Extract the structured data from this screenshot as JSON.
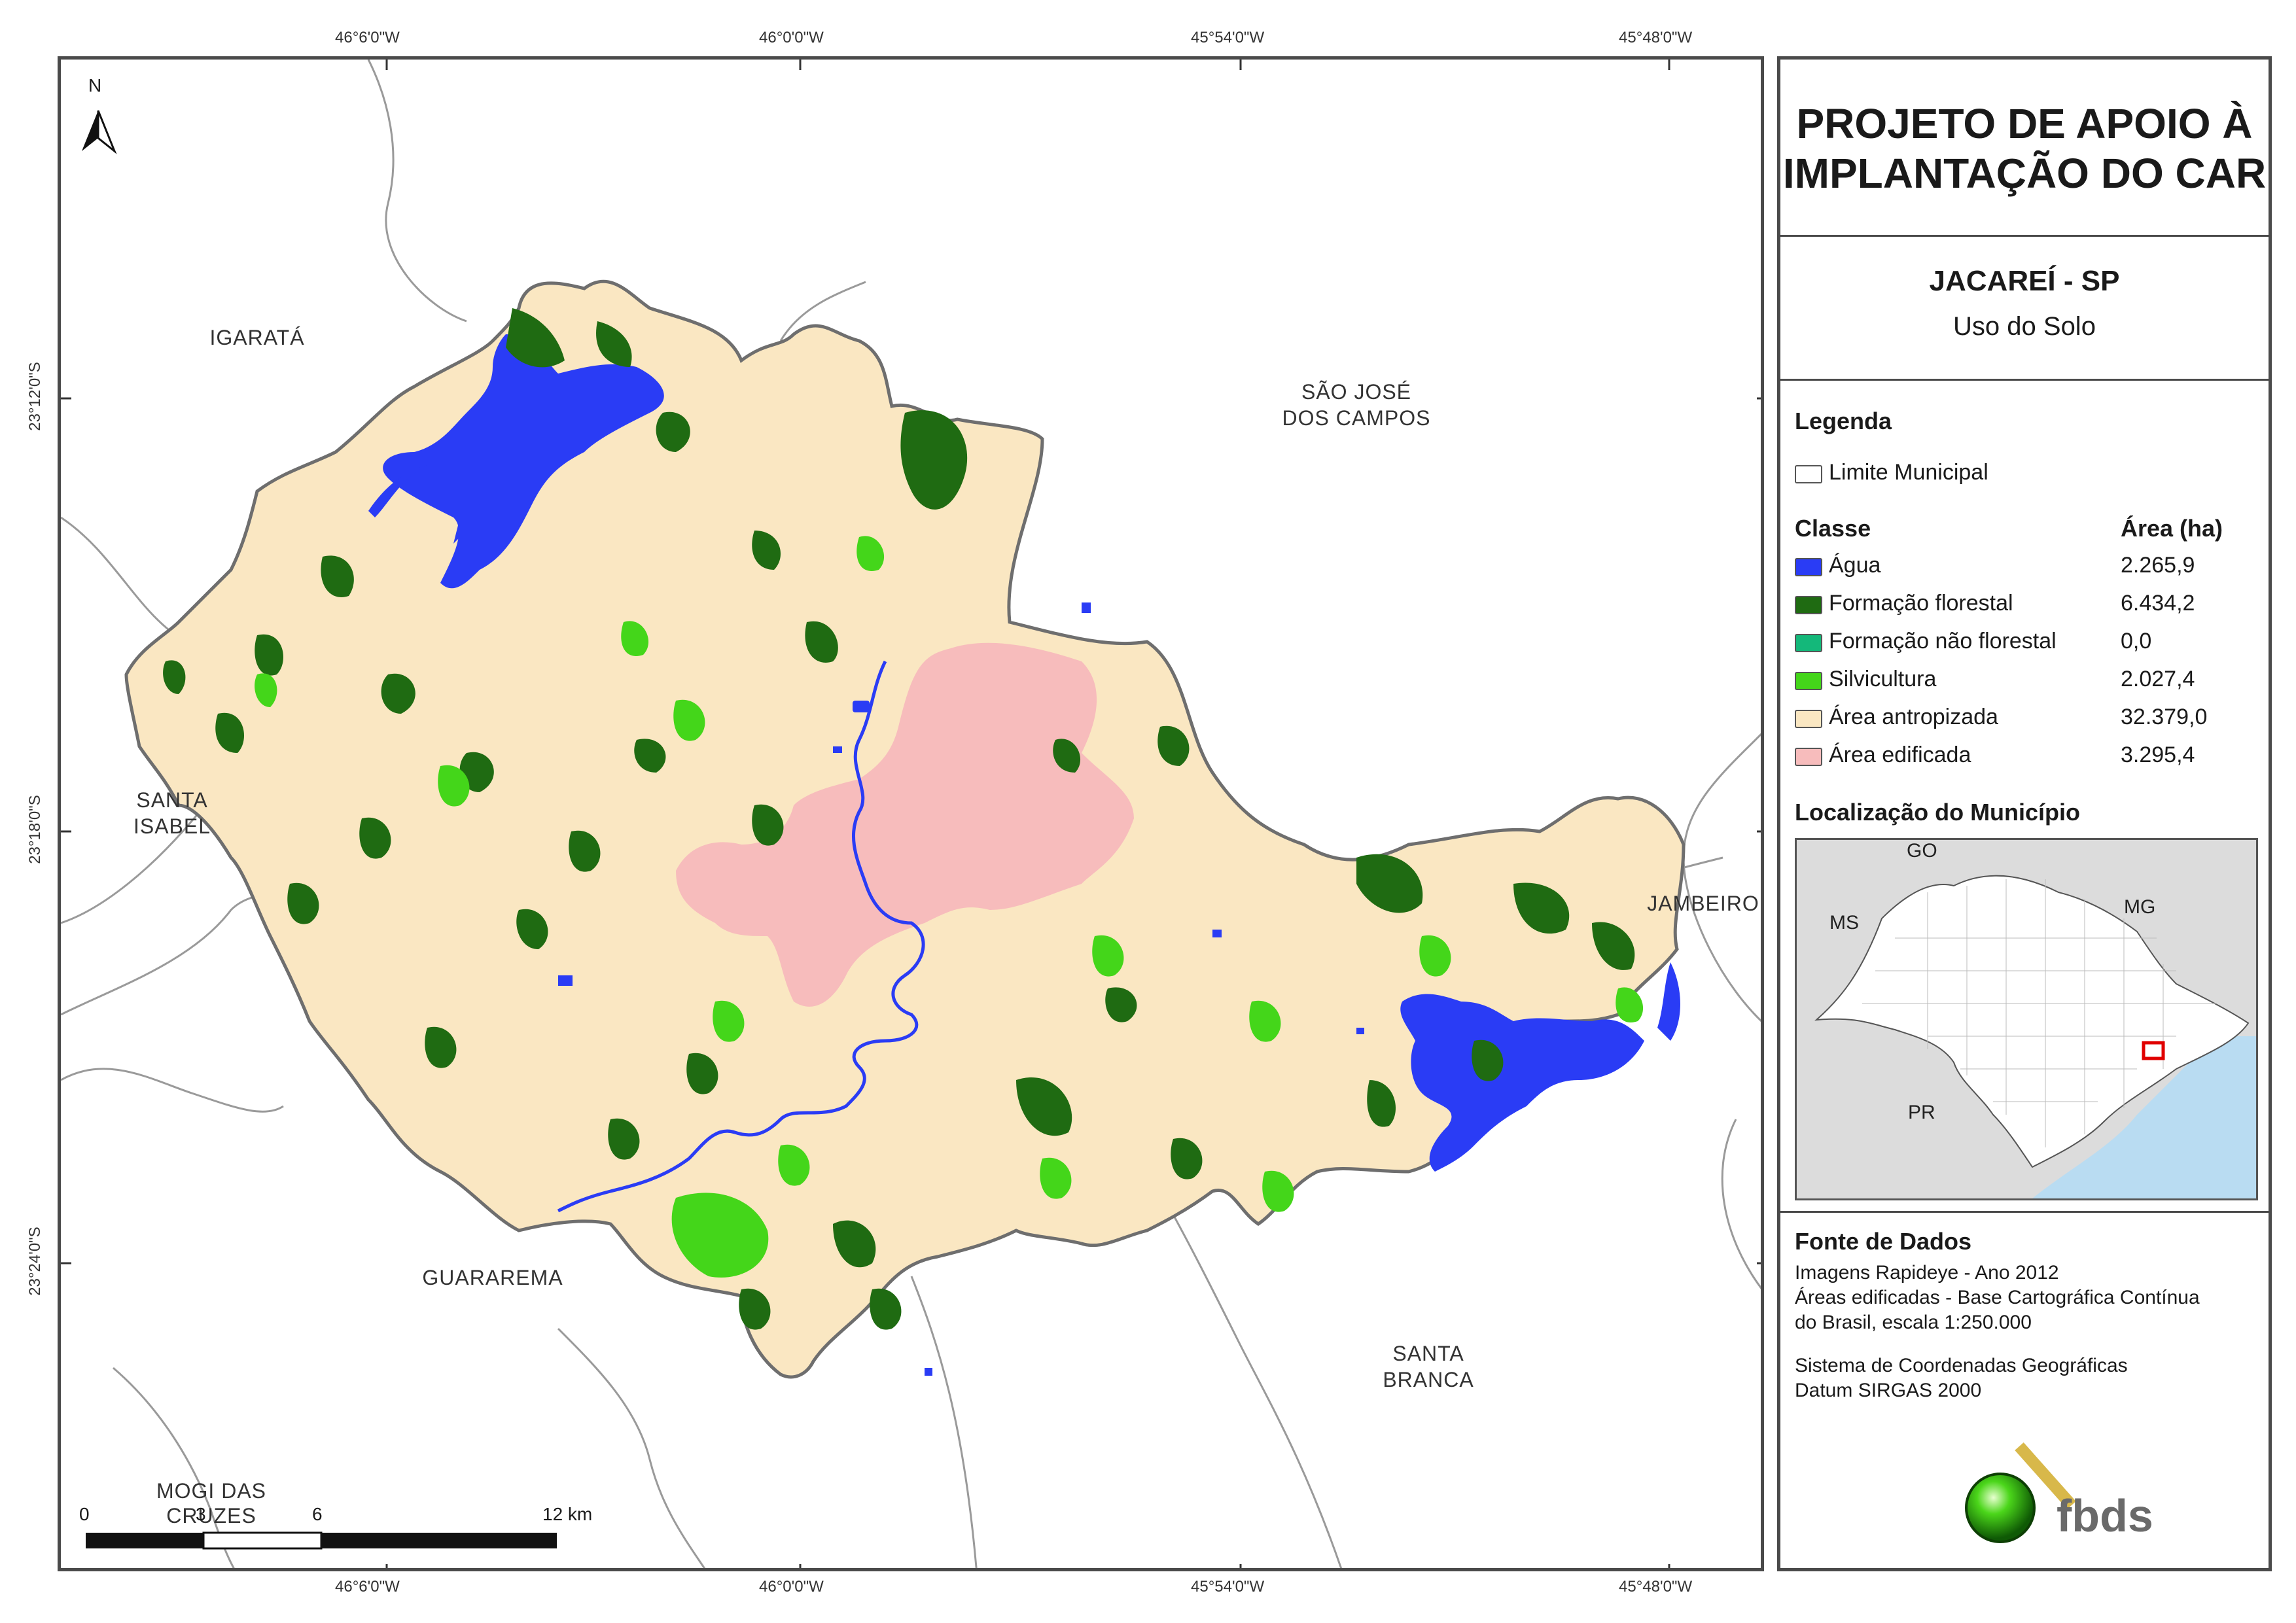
{
  "coords": {
    "top": [
      "46°6'0\"W",
      "46°0'0\"W",
      "45°54'0\"W",
      "45°48'0\"W"
    ],
    "bottom": [
      "46°6'0\"W",
      "46°0'0\"W",
      "45°54'0\"W",
      "45°48'0\"W"
    ],
    "left": [
      "23°12'0\"S",
      "23°18'0\"S",
      "23°24'0\"S"
    ]
  },
  "north_label": "N",
  "places": {
    "igarata": "IGARATÁ",
    "sao_jose_1": "SÃO JOSÉ",
    "sao_jose_2": "DOS CAMPOS",
    "santa_isabel_1": "SANTA",
    "santa_isabel_2": "ISABEL",
    "jambeiro": "JAMBEIRO",
    "guararema": "GUARAREMA",
    "santa_branca_1": "SANTA",
    "santa_branca_2": "BRANCA",
    "mogi_1": "MOGI DAS",
    "mogi_2": "CRUZES"
  },
  "scale": {
    "labels": [
      "0",
      "3",
      "6",
      "12 km"
    ]
  },
  "panel": {
    "title_1": "PROJETO DE APOIO À",
    "title_2": "IMPLANTAÇÃO DO CAR",
    "municipality": "JACAREÍ - SP",
    "subject": "Uso do Solo",
    "legend_heading": "Legenda",
    "boundary_label": "Limite Municipal",
    "class_heading": "Classe",
    "area_heading": "Área (ha)",
    "classes": [
      {
        "name": "Água",
        "area": "2.265,9",
        "color": "#2a3cf5"
      },
      {
        "name": "Formação florestal",
        "area": "6.434,2",
        "color": "#1f6b12"
      },
      {
        "name": "Formação não florestal",
        "area": "0,0",
        "color": "#14b87a"
      },
      {
        "name": "Silvicultura",
        "area": "2.027,4",
        "color": "#44d61a"
      },
      {
        "name": "Área antropizada",
        "area": "32.379,0",
        "color": "#fae7c2"
      },
      {
        "name": "Área edificada",
        "area": "3.295,4",
        "color": "#f7bcbc"
      }
    ],
    "location_heading": "Localização do Município",
    "inset_labels": {
      "go": "GO",
      "ms": "MS",
      "mg": "MG",
      "pr": "PR"
    },
    "sources_heading": "Fonte de Dados",
    "sources_1": "Imagens Rapideye - Ano 2012",
    "sources_2": "Áreas edificadas - Base Cartográfica Contínua",
    "sources_3": "do Brasil, escala 1:250.000",
    "crs_1": "Sistema de Coordenadas Geográficas",
    "crs_2": "Datum SIRGAS 2000",
    "logo_text": "fbds"
  }
}
